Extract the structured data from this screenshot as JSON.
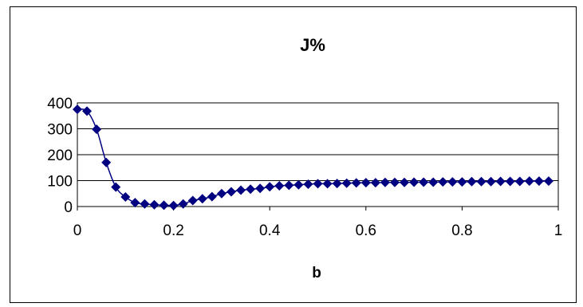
{
  "chart_data": {
    "type": "line",
    "title": "J%",
    "xlabel": "b",
    "ylabel": "",
    "xlim": [
      0,
      1
    ],
    "ylim": [
      0,
      400
    ],
    "x_ticks": [
      0,
      0.2,
      0.4,
      0.6,
      0.8,
      1
    ],
    "x_tick_labels": [
      "0",
      "0.2",
      "0.4",
      "0.6",
      "0.8",
      "1"
    ],
    "y_ticks": [
      0,
      100,
      200,
      300,
      400
    ],
    "y_tick_labels": [
      "0",
      "100",
      "200",
      "300",
      "400"
    ],
    "grid": "horizontal",
    "legend": "none",
    "marker": "diamond",
    "colors": {
      "series": "#000080",
      "grid": "#000000",
      "frame": "#000000"
    },
    "series": [
      {
        "x": [
          0,
          0.02,
          0.04,
          0.06,
          0.08,
          0.1,
          0.12,
          0.14,
          0.16,
          0.18,
          0.2,
          0.22,
          0.24,
          0.26,
          0.28,
          0.3,
          0.32,
          0.34,
          0.36,
          0.38,
          0.4,
          0.42,
          0.44,
          0.46,
          0.48,
          0.5,
          0.52,
          0.54,
          0.56,
          0.58,
          0.6,
          0.62,
          0.64,
          0.66,
          0.68,
          0.7,
          0.72,
          0.74,
          0.76,
          0.78,
          0.8,
          0.82,
          0.84,
          0.86,
          0.88,
          0.9,
          0.92,
          0.94,
          0.96,
          0.98
        ],
        "values": [
          375,
          368,
          298,
          170,
          75,
          37,
          15,
          10,
          7,
          5,
          4,
          10,
          23,
          30,
          38,
          50,
          57,
          63,
          67,
          70,
          76,
          80,
          82,
          84,
          86,
          88,
          88,
          89,
          90,
          91,
          92,
          92,
          93,
          93,
          93,
          94,
          94,
          94,
          95,
          95,
          95,
          96,
          96,
          96,
          97,
          97,
          97,
          98,
          98,
          98
        ]
      }
    ]
  }
}
